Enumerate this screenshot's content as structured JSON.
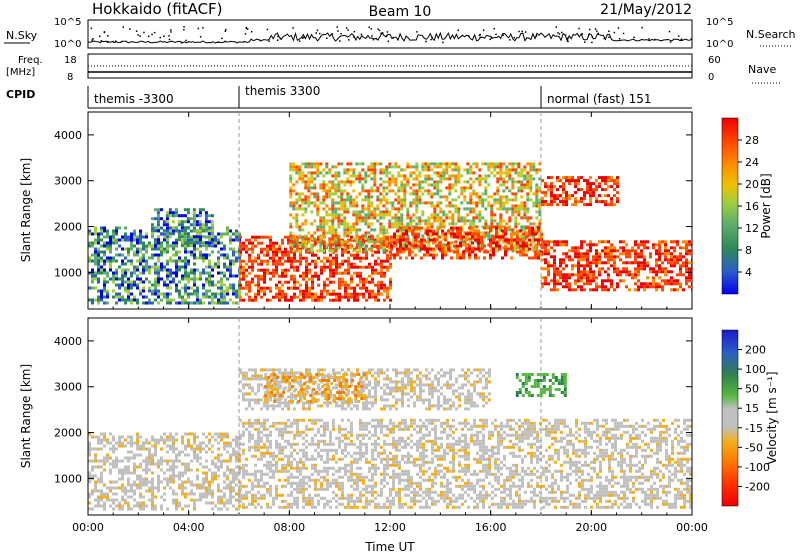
{
  "header": {
    "station": "Hokkaido (fitACF)",
    "beam": "Beam 10",
    "date": "21/May/2012"
  },
  "panels": {
    "nsky_label": "N.Sky",
    "nsearch_label": "N.Search",
    "freq_label_line1": "Freq.",
    "freq_label_line2": "[MHz]",
    "nave_label": "Nave",
    "cpid_label": "CPID",
    "nsky_ticks": [
      "10^5",
      "10^0"
    ],
    "nsearch_ticks": [
      "10^5",
      "10^0"
    ],
    "freq_ticks": [
      "18",
      "8"
    ],
    "nave_ticks": [
      "60",
      "0"
    ],
    "cpid_segments": [
      {
        "start": 0,
        "end": 6,
        "label": "themis -3300"
      },
      {
        "start": 6,
        "end": 18,
        "label": "themis 3300"
      },
      {
        "start": 18,
        "end": 24,
        "label": "normal (fast) 151"
      }
    ]
  },
  "chart_data": [
    {
      "type": "heatmap",
      "name": "power",
      "xlabel": "",
      "ylabel": "Slant Range [km]",
      "xlim": [
        0,
        24
      ],
      "ylim": [
        200,
        4500
      ],
      "yticks": [
        "1000",
        "2000",
        "3000",
        "4000"
      ],
      "colorbar_label": "Power [dB]",
      "colorbar_ticks": [
        "4",
        "8",
        "12",
        "16",
        "20",
        "24",
        "28"
      ],
      "colorbar_colors": [
        "#0000ee",
        "#2b5fc4",
        "#2f8a5a",
        "#5fae6a",
        "#9fcf3f",
        "#f0c000",
        "#ff8a00",
        "#ff4500",
        "#ee0000"
      ],
      "echo_regions": [
        {
          "t0": 0.0,
          "t1": 6.0,
          "r0": 300,
          "r1": 2000,
          "level": "low"
        },
        {
          "t0": 2.5,
          "t1": 5.0,
          "r0": 1600,
          "r1": 2400,
          "level": "low"
        },
        {
          "t0": 6.0,
          "t1": 12.0,
          "r0": 400,
          "r1": 1800,
          "level": "high"
        },
        {
          "t0": 8.0,
          "t1": 18.0,
          "r0": 1500,
          "r1": 3400,
          "level": "mid"
        },
        {
          "t0": 12.0,
          "t1": 18.0,
          "r0": 1300,
          "r1": 2000,
          "level": "high"
        },
        {
          "t0": 18.0,
          "t1": 24.0,
          "r0": 600,
          "r1": 1700,
          "level": "high"
        },
        {
          "t0": 18.0,
          "t1": 21.0,
          "r0": 2500,
          "r1": 3100,
          "level": "high"
        }
      ]
    },
    {
      "type": "heatmap",
      "name": "velocity",
      "xlabel": "Time UT",
      "ylabel": "Slant Range [km]",
      "xlim": [
        0,
        24
      ],
      "ylim": [
        200,
        4500
      ],
      "xticks": [
        "00:00",
        "04:00",
        "08:00",
        "12:00",
        "16:00",
        "20:00",
        "00:00"
      ],
      "yticks": [
        "1000",
        "2000",
        "3000",
        "4000"
      ],
      "colorbar_label": "Velocity [m s⁻¹]",
      "colorbar_ticks": [
        "200",
        "100",
        "50",
        "15",
        "-15",
        "-50",
        "-100",
        "-200"
      ],
      "colorbar_colors": [
        "#1a1acc",
        "#2b5fc4",
        "#2f7f4f",
        "#55b840",
        "#c0c0c0",
        "#f0b020",
        "#ff7a00",
        "#ff3300",
        "#ee0000"
      ],
      "echo_regions": [
        {
          "t0": 0.0,
          "t1": 6.0,
          "r0": 300,
          "r1": 2000,
          "level": "grey"
        },
        {
          "t0": 6.0,
          "t1": 24.0,
          "r0": 400,
          "r1": 2300,
          "level": "grey"
        },
        {
          "t0": 6.0,
          "t1": 16.0,
          "r0": 2500,
          "r1": 3400,
          "level": "grey"
        },
        {
          "t0": 7.0,
          "t1": 11.0,
          "r0": 2700,
          "r1": 3300,
          "level": "orange"
        },
        {
          "t0": 17.0,
          "t1": 19.0,
          "r0": 2800,
          "r1": 3300,
          "level": "green"
        }
      ]
    }
  ]
}
